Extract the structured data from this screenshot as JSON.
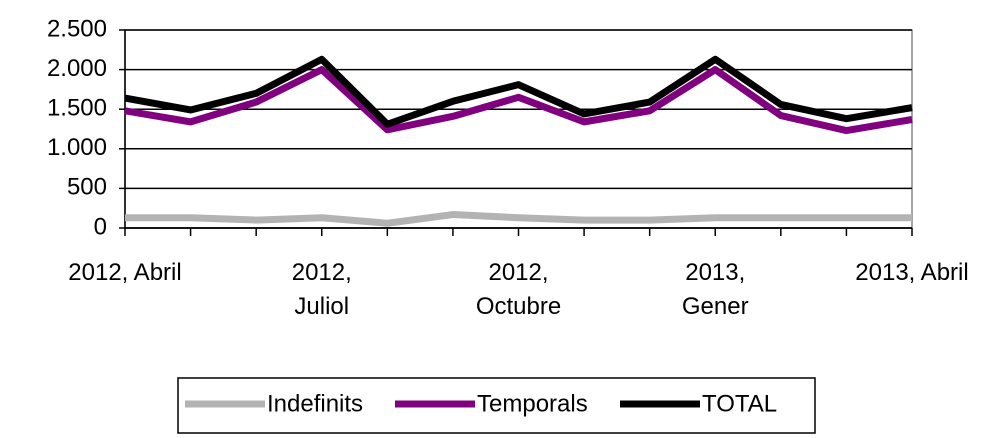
{
  "chart_data": {
    "type": "line",
    "categories": [
      "2012, Abril",
      null,
      null,
      "2012,\nJuliol",
      null,
      null,
      "2012,\nOctubre",
      null,
      null,
      "2013,\nGener",
      null,
      null,
      "2013, Abril"
    ],
    "series": [
      {
        "name": "Indefinits",
        "color": "#b3b3b3",
        "values": [
          130,
          130,
          100,
          130,
          60,
          170,
          130,
          100,
          100,
          130,
          130,
          130,
          130
        ]
      },
      {
        "name": "Temporals",
        "color": "#800080",
        "values": [
          1480,
          1340,
          1590,
          2000,
          1240,
          1410,
          1650,
          1340,
          1480,
          2000,
          1420,
          1230,
          1370
        ]
      },
      {
        "name": "TOTAL",
        "color": "#000000",
        "values": [
          1640,
          1490,
          1700,
          2130,
          1310,
          1600,
          1810,
          1440,
          1590,
          2130,
          1560,
          1380,
          1520
        ]
      }
    ],
    "ylim": [
      0,
      2500
    ],
    "yticks": [
      0,
      500,
      {
        "value": 1000,
        "label": "1.000"
      },
      {
        "value": 1500,
        "label": "1.500"
      },
      {
        "value": 2000,
        "label": "2.000"
      },
      {
        "value": 2500,
        "label": "2.500"
      }
    ],
    "grid": true,
    "legend": "bottom"
  }
}
